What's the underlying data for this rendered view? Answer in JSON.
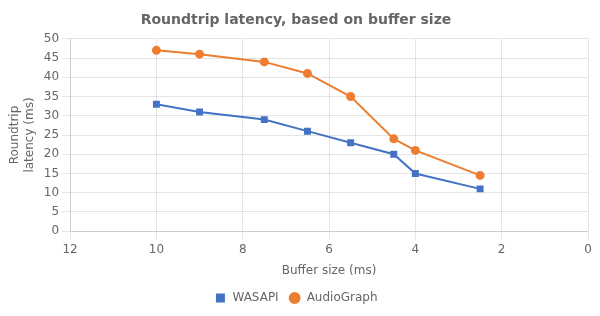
{
  "chart_data": {
    "type": "line",
    "title": "Roundtrip latency, based on buffer size",
    "xlabel": "Buffer size (ms)",
    "ylabel": "Roundtrip\nlatency (ms)",
    "x": [
      10,
      9,
      7.5,
      6.5,
      5.5,
      4.5,
      4,
      2.5
    ],
    "series": [
      {
        "name": "WASAPI",
        "color": "#4472C4",
        "marker": "square",
        "values": [
          33,
          31,
          29,
          26,
          23,
          20,
          15,
          11
        ]
      },
      {
        "name": "AudioGraph",
        "color": "#ED7D31",
        "marker": "circle",
        "values": [
          47,
          46,
          44,
          41,
          35,
          24,
          21,
          14.5
        ]
      }
    ],
    "xlim": [
      12,
      0
    ],
    "ylim": [
      0,
      50
    ],
    "xticks": [
      12,
      10,
      8,
      6,
      4,
      2,
      0
    ],
    "yticks": [
      0,
      5,
      10,
      15,
      20,
      25,
      30,
      35,
      40,
      45,
      50
    ],
    "grid": true,
    "legend": "bottom"
  }
}
